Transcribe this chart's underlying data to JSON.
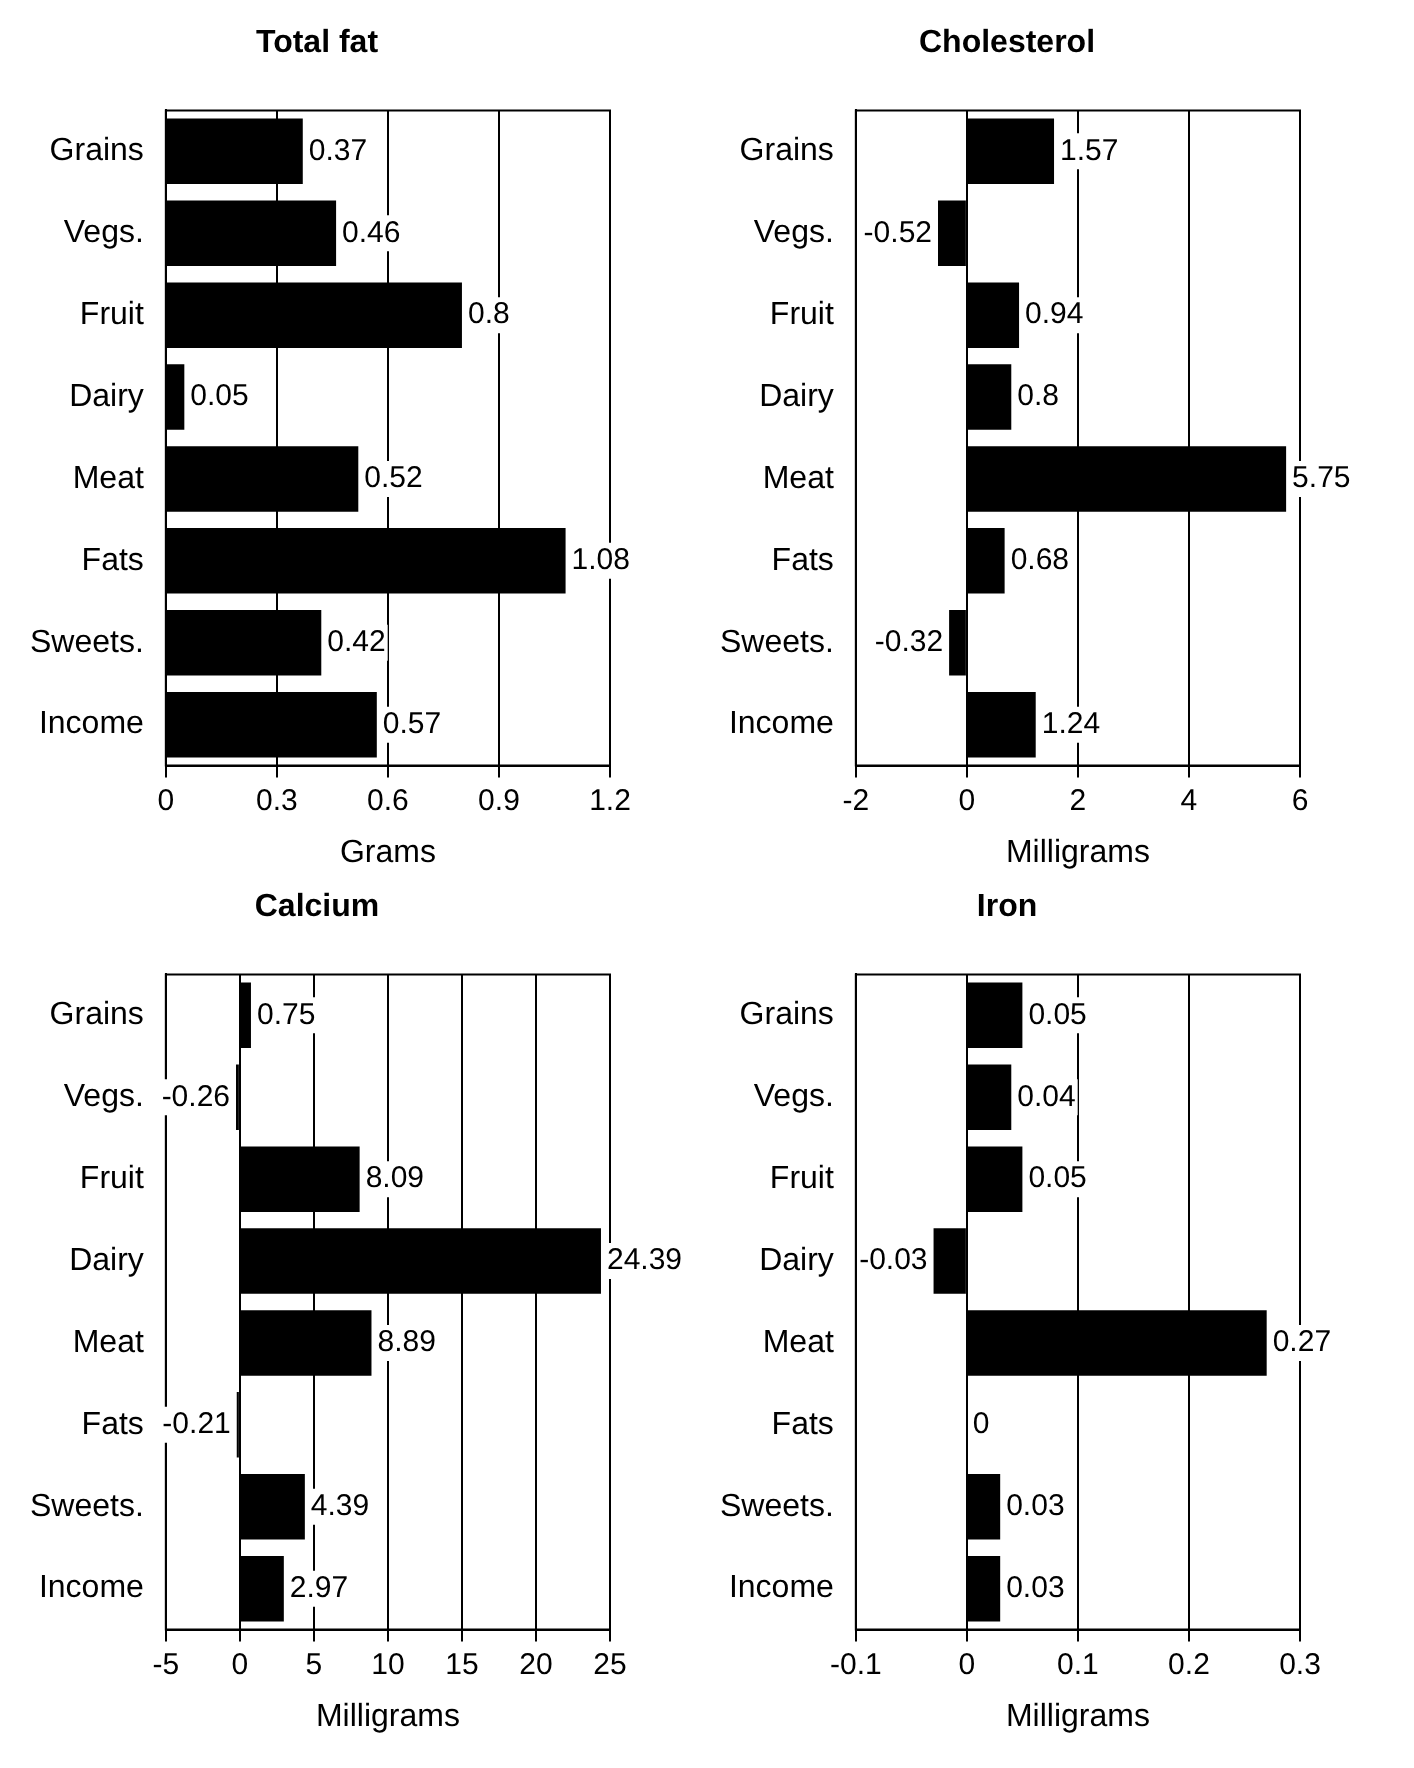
{
  "chart_data": [
    {
      "type": "bar",
      "orientation": "horizontal",
      "title": "Total fat",
      "xlabel": "Grams",
      "categories": [
        "Grains",
        "Vegs.",
        "Fruit",
        "Dairy",
        "Meat",
        "Fats",
        "Sweets.",
        "Income"
      ],
      "values": [
        0.37,
        0.46,
        0.8,
        0.05,
        0.52,
        1.08,
        0.42,
        0.57
      ],
      "color": "#000000",
      "xlim": [
        0,
        1.2
      ],
      "xticks": [
        0,
        0.3,
        0.6,
        0.9,
        1.2
      ],
      "grid": "x",
      "data_labels": true,
      "legend": false
    },
    {
      "type": "bar",
      "orientation": "horizontal",
      "title": "Cholesterol",
      "xlabel": "Milligrams",
      "categories": [
        "Grains",
        "Vegs.",
        "Fruit",
        "Dairy",
        "Meat",
        "Fats",
        "Sweets.",
        "Income"
      ],
      "values": [
        1.57,
        -0.52,
        0.94,
        0.8,
        5.75,
        0.68,
        -0.32,
        1.24
      ],
      "color": "#000000",
      "xlim": [
        -2,
        6
      ],
      "xticks": [
        -2,
        0,
        2,
        4,
        6
      ],
      "grid": "x",
      "data_labels": true,
      "legend": false
    },
    {
      "type": "bar",
      "orientation": "horizontal",
      "title": "Calcium",
      "xlabel": "Milligrams",
      "categories": [
        "Grains",
        "Vegs.",
        "Fruit",
        "Dairy",
        "Meat",
        "Fats",
        "Sweets.",
        "Income"
      ],
      "values": [
        0.75,
        -0.26,
        8.09,
        24.39,
        8.89,
        -0.21,
        4.39,
        2.97
      ],
      "color": "#000000",
      "xlim": [
        -5,
        25
      ],
      "xticks": [
        -5,
        0,
        5,
        10,
        15,
        20,
        25
      ],
      "grid": "x",
      "data_labels": true,
      "legend": false
    },
    {
      "type": "bar",
      "orientation": "horizontal",
      "title": "Iron",
      "xlabel": "Milligrams",
      "categories": [
        "Grains",
        "Vegs.",
        "Fruit",
        "Dairy",
        "Meat",
        "Fats",
        "Sweets.",
        "Income"
      ],
      "values": [
        0.05,
        0.04,
        0.05,
        -0.03,
        0.27,
        0,
        0.03,
        0.03
      ],
      "color": "#000000",
      "xlim": [
        -0.1,
        0.3
      ],
      "xticks": [
        -0.1,
        0,
        0.1,
        0.2,
        0.3
      ],
      "grid": "x",
      "data_labels": true,
      "legend": false
    }
  ]
}
